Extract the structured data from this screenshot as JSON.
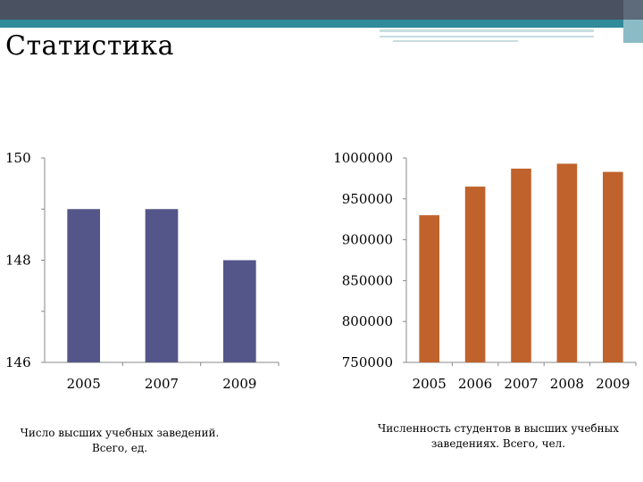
{
  "page_title": "Статистика",
  "colors": {
    "left_bars": "#545689",
    "right_bars": "#c0622b",
    "top_bar": "#4a5262",
    "teal_band": "#2f8a99"
  },
  "chart_data": [
    {
      "type": "bar",
      "categories": [
        "2005",
        "2007",
        "2009"
      ],
      "values": [
        149,
        149,
        148
      ],
      "ylim": [
        146,
        150
      ],
      "yticks": [
        146,
        148,
        150
      ],
      "ytick_labels": [
        "146",
        "148",
        "150"
      ],
      "caption": "Число высших учебных заведений. Всего, ед.",
      "grid": false
    },
    {
      "type": "bar",
      "categories": [
        "2005",
        "2006",
        "2007",
        "2008",
        "2009"
      ],
      "values": [
        930000,
        965000,
        987000,
        993000,
        983000
      ],
      "ylim": [
        750000,
        1000000
      ],
      "yticks": [
        750000,
        800000,
        850000,
        900000,
        950000,
        1000000
      ],
      "ytick_labels": [
        "750000",
        "800000",
        "850000",
        "900000",
        "950000",
        "1000000"
      ],
      "caption": "Численность студентов в высших учебных заведениях. Всего, чел.",
      "grid": false
    }
  ]
}
